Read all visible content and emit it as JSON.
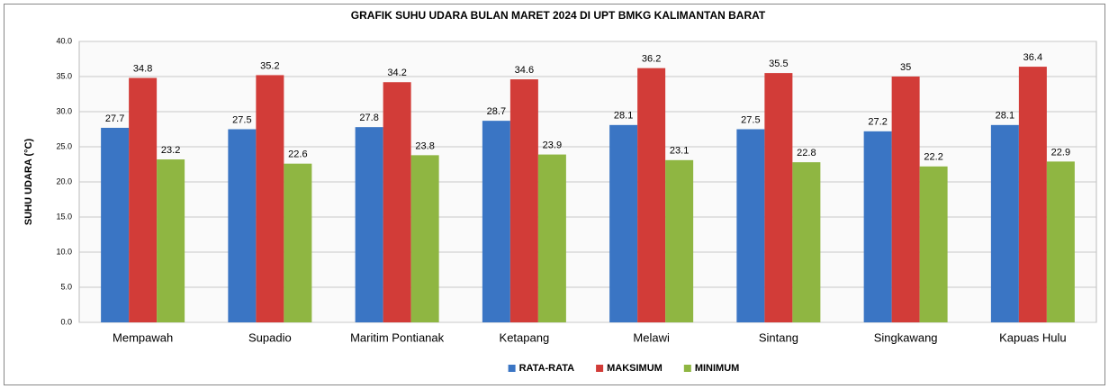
{
  "chart_data": {
    "type": "bar",
    "title": "GRAFIK SUHU UDARA BULAN MARET 2024 DI UPT BMKG KALIMANTAN BARAT",
    "y_label": "SUHU UDARA (°C)",
    "categories": [
      "Mempawah",
      "Supadio",
      "Maritim Pontianak",
      "Ketapang",
      "Melawi",
      "Sintang",
      "Singkawang",
      "Kapuas Hulu"
    ],
    "series": [
      {
        "name": "RATA-RATA",
        "color": "#3a75c4",
        "values": [
          27.7,
          27.5,
          27.8,
          28.7,
          28.1,
          27.5,
          27.2,
          28.1
        ]
      },
      {
        "name": "MAKSIMUM",
        "color": "#d23c38",
        "values": [
          34.8,
          35.2,
          34.2,
          34.6,
          36.2,
          35.5,
          35,
          36.4
        ]
      },
      {
        "name": "MINIMUM",
        "color": "#8fb642",
        "values": [
          23.2,
          22.6,
          23.8,
          23.9,
          23.1,
          22.8,
          22.2,
          22.9
        ]
      }
    ],
    "ylim": [
      0,
      40
    ],
    "yticks": [
      {
        "value": 0,
        "label": "0.0"
      },
      {
        "value": 5,
        "label": "5.0"
      },
      {
        "value": 10,
        "label": "10.0"
      },
      {
        "value": 15,
        "label": "15.0"
      },
      {
        "value": 20,
        "label": "20.0"
      },
      {
        "value": 25,
        "label": "25.0"
      },
      {
        "value": 30,
        "label": "30.0"
      },
      {
        "value": 35,
        "label": "35.0"
      },
      {
        "value": 40,
        "label": "40.0"
      }
    ],
    "grid": true,
    "legend": "bottom"
  }
}
